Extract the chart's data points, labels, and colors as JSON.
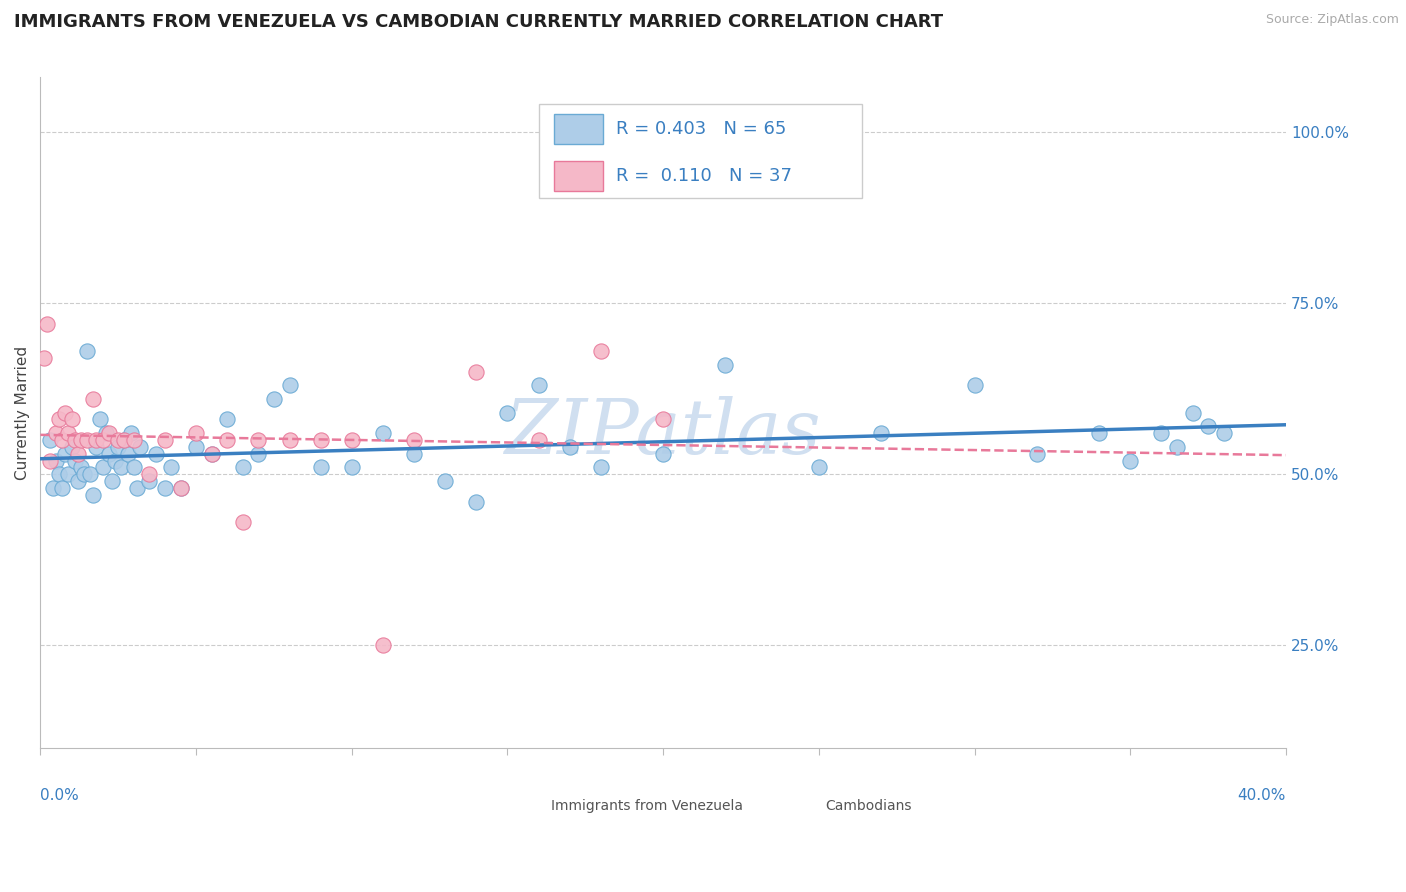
{
  "title": "IMMIGRANTS FROM VENEZUELA VS CAMBODIAN CURRENTLY MARRIED CORRELATION CHART",
  "source_text": "Source: ZipAtlas.com",
  "ylabel": "Currently Married",
  "xmin": 0.0,
  "xmax": 40.0,
  "ymin": 10.0,
  "ymax": 108.0,
  "yticks": [
    25.0,
    50.0,
    75.0,
    100.0
  ],
  "ytick_labels": [
    "25.0%",
    "50.0%",
    "75.0%",
    "100.0%"
  ],
  "xticks": [
    0.0,
    5.0,
    10.0,
    15.0,
    20.0,
    25.0,
    30.0,
    35.0,
    40.0
  ],
  "series": [
    {
      "name": "Immigrants from Venezuela",
      "R": 0.403,
      "N": 65,
      "face_color": "#aecde8",
      "edge_color": "#6aaad4",
      "line_color": "#3a7fc1",
      "line_style": "solid",
      "x": [
        0.3,
        0.4,
        0.5,
        0.6,
        0.7,
        0.8,
        0.9,
        1.0,
        1.1,
        1.2,
        1.3,
        1.4,
        1.5,
        1.6,
        1.7,
        1.8,
        1.9,
        2.0,
        2.1,
        2.2,
        2.3,
        2.4,
        2.5,
        2.6,
        2.7,
        2.8,
        2.9,
        3.0,
        3.1,
        3.2,
        3.5,
        3.7,
        4.0,
        4.2,
        4.5,
        5.0,
        5.5,
        6.0,
        6.5,
        7.0,
        7.5,
        8.0,
        9.0,
        10.0,
        11.0,
        12.0,
        13.0,
        14.0,
        15.0,
        16.0,
        17.0,
        18.0,
        20.0,
        22.0,
        25.0,
        27.0,
        30.0,
        32.0,
        34.0,
        36.0,
        37.0,
        38.0,
        37.5,
        36.5,
        35.0
      ],
      "y": [
        55,
        48,
        52,
        50,
        48,
        53,
        50,
        54,
        52,
        49,
        51,
        50,
        68,
        50,
        47,
        54,
        58,
        51,
        56,
        53,
        49,
        52,
        54,
        51,
        55,
        53,
        56,
        51,
        48,
        54,
        49,
        53,
        48,
        51,
        48,
        54,
        53,
        58,
        51,
        53,
        61,
        63,
        51,
        51,
        56,
        53,
        49,
        46,
        59,
        63,
        54,
        51,
        53,
        66,
        51,
        56,
        63,
        53,
        56,
        56,
        59,
        56,
        57,
        54,
        52
      ]
    },
    {
      "name": "Cambodians",
      "R": 0.11,
      "N": 37,
      "face_color": "#f5b8c8",
      "edge_color": "#e8799a",
      "line_color": "#e8799a",
      "line_style": "dashed",
      "x": [
        0.1,
        0.2,
        0.3,
        0.5,
        0.6,
        0.7,
        0.8,
        0.9,
        1.0,
        1.1,
        1.2,
        1.3,
        1.5,
        1.7,
        1.8,
        2.0,
        2.2,
        2.5,
        2.7,
        3.0,
        3.5,
        4.0,
        4.5,
        5.0,
        5.5,
        6.0,
        6.5,
        7.0,
        8.0,
        9.0,
        10.0,
        11.0,
        12.0,
        14.0,
        16.0,
        18.0,
        20.0
      ],
      "y": [
        67,
        72,
        52,
        56,
        58,
        55,
        59,
        56,
        58,
        55,
        53,
        55,
        55,
        61,
        55,
        55,
        56,
        55,
        55,
        55,
        50,
        55,
        48,
        56,
        53,
        55,
        43,
        55,
        55,
        55,
        55,
        25,
        55,
        65,
        55,
        68,
        58
      ]
    }
  ],
  "watermark_text": "ZIPatlas",
  "watermark_color": "#d0dff0",
  "background_color": "#ffffff",
  "grid_color": "#cccccc",
  "title_fontsize": 13,
  "axis_label_fontsize": 11,
  "tick_fontsize": 11,
  "legend_fontsize": 13,
  "source_fontsize": 9
}
